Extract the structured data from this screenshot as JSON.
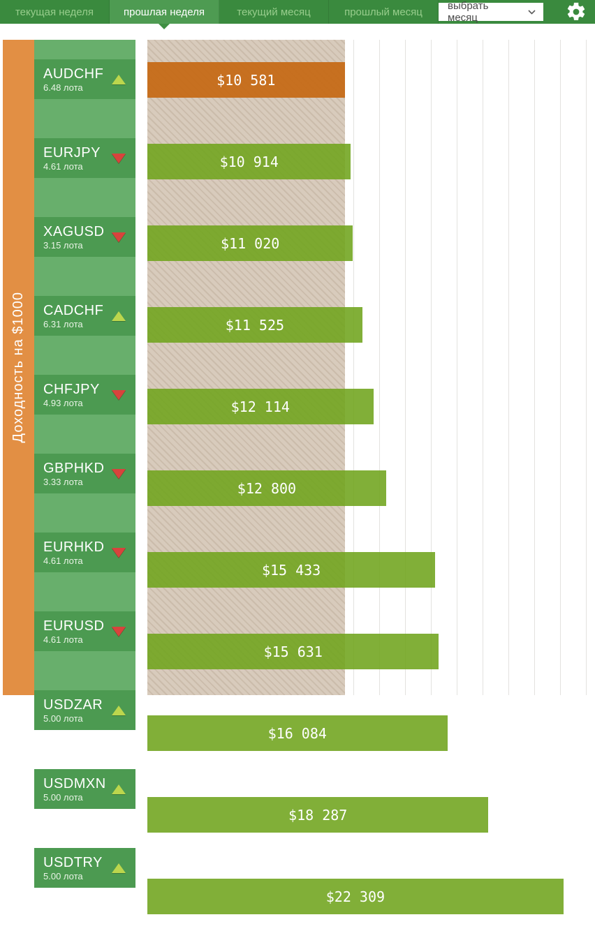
{
  "header": {
    "tabs": [
      {
        "label": "текущая неделя",
        "active": false
      },
      {
        "label": "прошлая неделя",
        "active": true
      },
      {
        "label": "текущий месяц",
        "active": false
      },
      {
        "label": "прошлый месяц",
        "active": false
      }
    ],
    "month_select_label": "выбрать месяц",
    "icons": {
      "chevron": "chevron-down-icon",
      "settings": "gear-icon"
    }
  },
  "axis_title": "Доходность на $1000",
  "chart_data": {
    "type": "bar",
    "orientation": "horizontal",
    "title": "Доходность на $1000",
    "unit": "USD",
    "xmax": 24000,
    "baseline_band_value": 10581,
    "grid": true,
    "rows": [
      {
        "pair": "AUDCHF",
        "lots": "6.48 лота",
        "trend": "up",
        "value": 10581,
        "value_label": "$10 581",
        "highlight": true
      },
      {
        "pair": "EURJPY",
        "lots": "4.61 лота",
        "trend": "down",
        "value": 10914,
        "value_label": "$10 914",
        "highlight": false
      },
      {
        "pair": "XAGUSD",
        "lots": "3.15 лота",
        "trend": "down",
        "value": 11020,
        "value_label": "$11 020",
        "highlight": false
      },
      {
        "pair": "CADCHF",
        "lots": "6.31 лота",
        "trend": "up",
        "value": 11525,
        "value_label": "$11 525",
        "highlight": false
      },
      {
        "pair": "CHFJPY",
        "lots": "4.93 лота",
        "trend": "down",
        "value": 12114,
        "value_label": "$12 114",
        "highlight": false
      },
      {
        "pair": "GBPHKD",
        "lots": "3.33 лота",
        "trend": "down",
        "value": 12800,
        "value_label": "$12 800",
        "highlight": false
      },
      {
        "pair": "EURHKD",
        "lots": "4.61 лота",
        "trend": "down",
        "value": 15433,
        "value_label": "$15 433",
        "highlight": false
      },
      {
        "pair": "EURUSD",
        "lots": "4.61 лота",
        "trend": "down",
        "value": 15631,
        "value_label": "$15 631",
        "highlight": false
      },
      {
        "pair": "USDZAR",
        "lots": "5.00 лота",
        "trend": "up",
        "value": 16084,
        "value_label": "$16 084",
        "highlight": false
      },
      {
        "pair": "USDMXN",
        "lots": "5.00 лота",
        "trend": "up",
        "value": 18287,
        "value_label": "$18 287",
        "highlight": false
      },
      {
        "pair": "USDTRY",
        "lots": "5.00 лота",
        "trend": "up",
        "value": 22309,
        "value_label": "$22 309",
        "highlight": false
      }
    ]
  },
  "colors": {
    "header_green": "#3a8a3e",
    "tab_active_green": "#4e9b52",
    "sidebar_orange": "#e28f44",
    "label_block_green": "#4c9a51",
    "label_strip_green": "#68af6c",
    "bar_green": "#82af37",
    "bar_highlight_orange": "#c77020",
    "trend_up": "#bcd64d",
    "trend_down": "#d8433c",
    "baseline_band": "#d8cbbc"
  }
}
